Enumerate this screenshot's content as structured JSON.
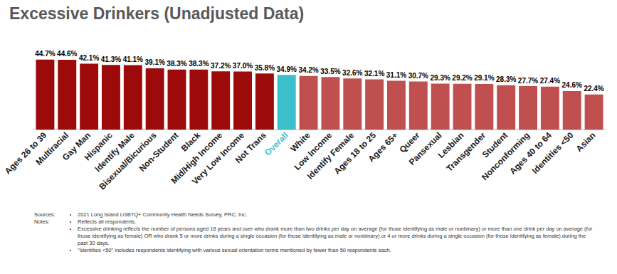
{
  "chart_data": {
    "type": "bar",
    "title": "Excessive Drinkers (Unadjusted Data)",
    "categories": [
      "Ages 26 to 39",
      "Multiracial",
      "Gay Man",
      "Hispanic",
      "Identify Male",
      "Bisexual/Bicurious",
      "Non-Student",
      "Black",
      "Mid/High Income",
      "Very Low Income",
      "Not Trans",
      "Overall",
      "White",
      "Low Income",
      "Identify Female",
      "Ages 18 to 25",
      "Ages 65+",
      "Queer",
      "Pansexual",
      "Lesbian",
      "Transgender",
      "Student",
      "Nonconforming",
      "Ages 40 to 64",
      "Identities <50",
      "Asian"
    ],
    "values": [
      44.7,
      44.6,
      42.1,
      41.3,
      41.1,
      39.1,
      38.3,
      38.3,
      37.2,
      37.0,
      35.8,
      34.9,
      34.2,
      33.5,
      32.6,
      32.1,
      31.1,
      30.7,
      29.3,
      29.2,
      29.1,
      28.3,
      27.7,
      27.4,
      24.6,
      22.4
    ],
    "value_labels": [
      "44.7%",
      "44.6%",
      "42.1%",
      "41.3%",
      "41.1%",
      "39.1%",
      "38.3%",
      "38.3%",
      "37.2%",
      "37.0%",
      "35.8%",
      "34.9%",
      "34.2%",
      "33.5%",
      "32.6%",
      "32.1%",
      "31.1%",
      "30.7%",
      "29.3%",
      "29.2%",
      "29.1%",
      "28.3%",
      "27.7%",
      "27.4%",
      "24.6%",
      "22.4%"
    ],
    "colors": [
      "#9c0a0a",
      "#9c0a0a",
      "#9c0a0a",
      "#9c0a0a",
      "#9c0a0a",
      "#9c0a0a",
      "#9c0a0a",
      "#9c0a0a",
      "#9c0a0a",
      "#9c0a0a",
      "#9c0a0a",
      "#3cbfcc",
      "#c0504f",
      "#c0504f",
      "#c0504f",
      "#c0504f",
      "#c0504f",
      "#c0504f",
      "#c0504f",
      "#c0504f",
      "#c0504f",
      "#c0504f",
      "#c0504f",
      "#c0504f",
      "#c0504f",
      "#c0504f"
    ],
    "ylim": [
      0,
      50
    ],
    "grid": false,
    "data_labels": true,
    "tick_labels": "x",
    "annotations": [
      {
        "label": "Sources:",
        "items": [
          "2021 Long Island LGBTQ+ Community Health Needs Survey, PRC, Inc."
        ]
      },
      {
        "label": "Notes:",
        "items": [
          "Reflects all respondents.",
          "Excessive drinking reflects the number of persons aged 18 years and over who drank more than two drinks per day on average (for those identifying as male or nonbinary) or more than one drink per day on average (for those identifying as female) OR who drank 5 or more drinks during a single occasion (for those identifying as male or nonbinary) or 4 or more drinks during a single occasion (for those identifying as female) during the past 30 days.",
          "\"Identities <50\" includes respondents identifying with various sexual orientation terms mentioned by fewer than 50 respondents each."
        ]
      }
    ]
  }
}
